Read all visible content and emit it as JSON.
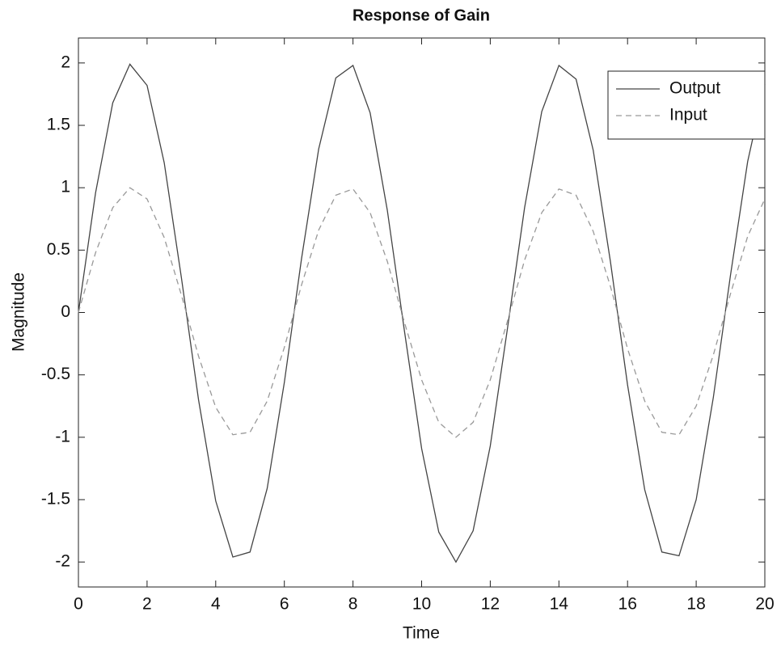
{
  "chart_data": {
    "type": "line",
    "title": "Response of Gain",
    "xlabel": "Time",
    "ylabel": "Magnitude",
    "x": [
      0,
      0.5,
      1,
      1.5,
      2,
      2.5,
      3,
      3.5,
      4,
      4.5,
      5,
      5.5,
      6,
      6.5,
      7,
      7.5,
      8,
      8.5,
      9,
      9.5,
      10,
      10.5,
      11,
      11.5,
      12,
      12.5,
      13,
      13.5,
      14,
      14.5,
      15,
      15.5,
      16,
      16.5,
      17,
      17.5,
      18,
      18.5,
      19,
      19.5,
      20
    ],
    "series": [
      {
        "name": "Output",
        "color": "#444444",
        "style": "solid",
        "values": [
          0,
          0.96,
          1.68,
          1.99,
          1.82,
          1.2,
          0.28,
          -0.7,
          -1.51,
          -1.96,
          -1.92,
          -1.41,
          -0.56,
          0.43,
          1.31,
          1.88,
          1.98,
          1.6,
          0.82,
          -0.15,
          -1.09,
          -1.76,
          -2.0,
          -1.75,
          -1.07,
          -0.13,
          0.84,
          1.61,
          1.98,
          1.87,
          1.3,
          0.41,
          -0.58,
          -1.42,
          -1.92,
          -1.95,
          -1.5,
          -0.68,
          0.3,
          1.21,
          1.83
        ]
      },
      {
        "name": "Input",
        "color": "#999999",
        "style": "dashed",
        "values": [
          0,
          0.48,
          0.84,
          1.0,
          0.91,
          0.6,
          0.14,
          -0.35,
          -0.76,
          -0.98,
          -0.96,
          -0.71,
          -0.28,
          0.22,
          0.66,
          0.94,
          0.99,
          0.8,
          0.41,
          -0.08,
          -0.54,
          -0.88,
          -1.0,
          -0.88,
          -0.54,
          -0.07,
          0.42,
          0.8,
          0.99,
          0.94,
          0.65,
          0.21,
          -0.29,
          -0.71,
          -0.96,
          -0.98,
          -0.75,
          -0.34,
          0.15,
          0.61,
          0.91
        ]
      }
    ],
    "xlim": [
      0,
      20
    ],
    "xticks": [
      0,
      2,
      4,
      6,
      8,
      10,
      12,
      14,
      16,
      18,
      20
    ],
    "ylim": [
      -2.2,
      2.2
    ],
    "yticks": [
      -2,
      -1.5,
      -1,
      -0.5,
      0,
      0.5,
      1,
      1.5,
      2
    ],
    "grid": false,
    "legend": "upper right"
  }
}
